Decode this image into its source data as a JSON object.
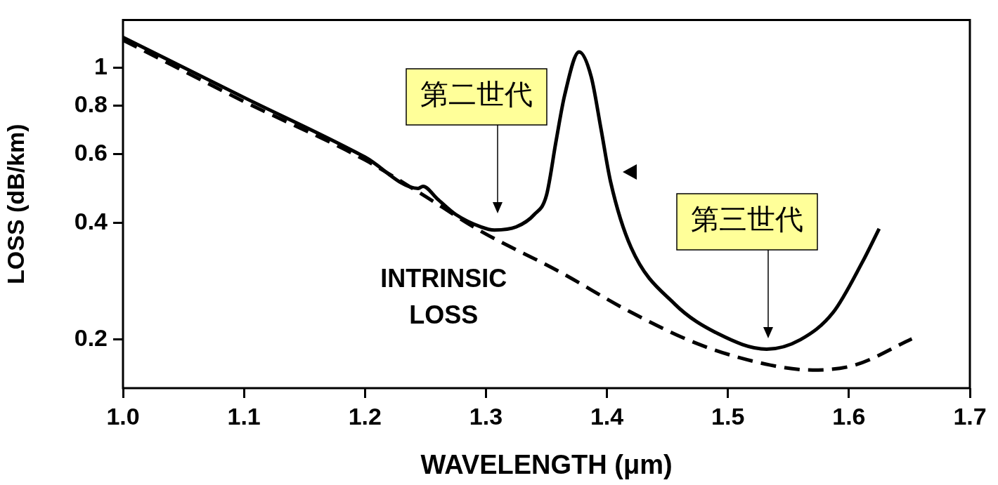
{
  "chart_data": {
    "type": "line",
    "xlabel": "WAVELENGTH (μm)",
    "ylabel": "LOSS (dB/km)",
    "xlim": [
      1.0,
      1.7
    ],
    "xticks": [
      {
        "value": 1,
        "label": "1.0"
      },
      1.1,
      1.2,
      1.3,
      1.4,
      1.5,
      1.6,
      1.7
    ],
    "ylim": [
      0.15,
      1.33
    ],
    "yticks": [
      0.2,
      0.4,
      0.6,
      0.8,
      1
    ],
    "log": "y",
    "marker": "none",
    "series": [
      {
        "color": "#000000",
        "line_style": "solid",
        "x": [
          1.0,
          1.1,
          1.2,
          1.244,
          1.248,
          1.26,
          1.275,
          1.296,
          1.307,
          1.325,
          1.34,
          1.35,
          1.358,
          1.365,
          1.377,
          1.387,
          1.395,
          1.403,
          1.42,
          1.456,
          1.492,
          1.532,
          1.56,
          1.587,
          1.611,
          1.625
        ],
        "values": [
          1.2,
          0.84,
          0.59,
          0.49,
          0.496,
          0.46,
          0.42,
          0.39,
          0.383,
          0.39,
          0.42,
          0.47,
          0.65,
          0.85,
          1.1,
          0.95,
          0.7,
          0.51,
          0.345,
          0.247,
          0.207,
          0.189,
          0.2,
          0.235,
          0.316,
          0.386
        ]
      },
      {
        "name": "INTRINSIC LOSS",
        "color": "#000000",
        "line_style": "dashed",
        "x": [
          1.0,
          1.1,
          1.2,
          1.244,
          1.296,
          1.36,
          1.419,
          1.477,
          1.535,
          1.57,
          1.605,
          1.652
        ],
        "values": [
          1.18,
          0.82,
          0.58,
          0.48,
          0.38,
          0.3,
          0.236,
          0.194,
          0.172,
          0.167,
          0.172,
          0.201
        ]
      }
    ],
    "annotations": [
      "第二世代",
      "第三世代"
    ]
  }
}
